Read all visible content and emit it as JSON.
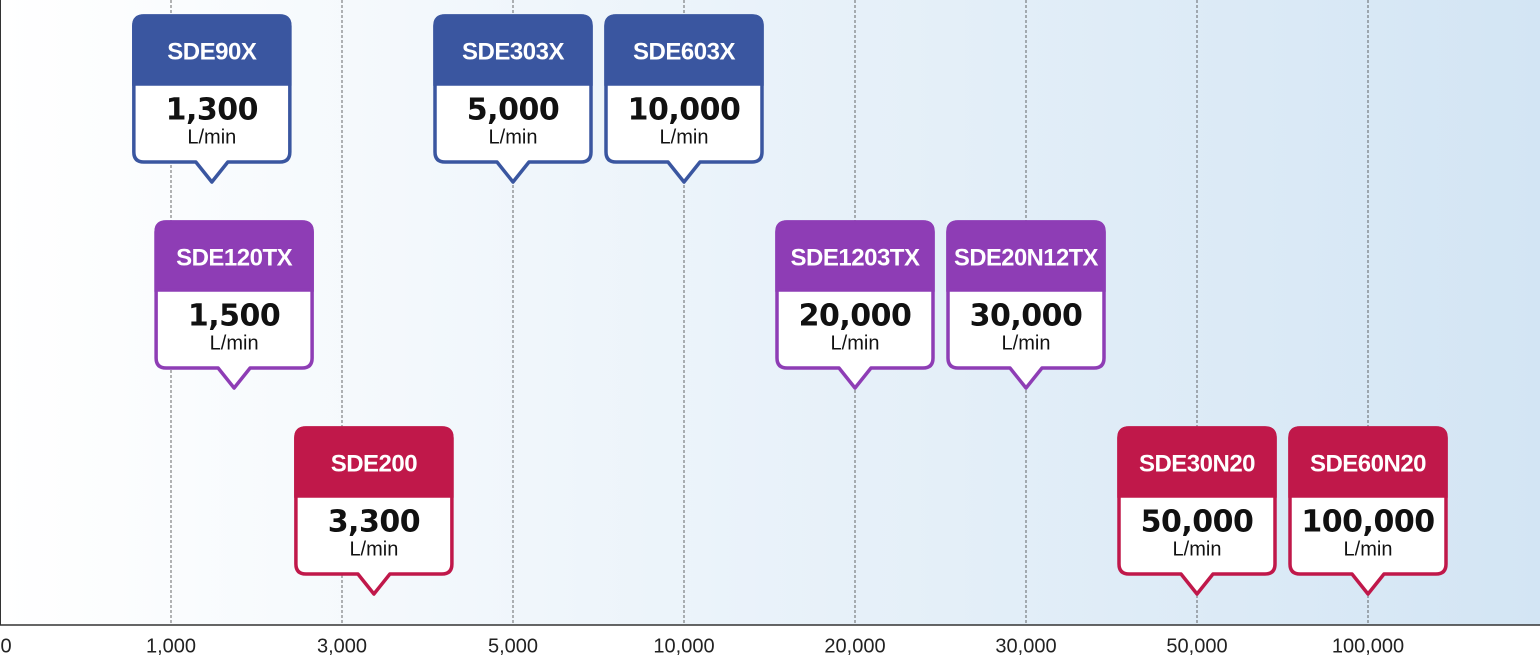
{
  "chart_data": {
    "type": "callout",
    "unit": "L/min",
    "xticks": [
      0,
      {
        "value": 1000,
        "label": "1,000"
      },
      {
        "value": 3000,
        "label": "3,000"
      },
      {
        "value": 5000,
        "label": "5,000"
      },
      {
        "value": 10000,
        "label": "10,000"
      },
      {
        "value": 20000,
        "label": "20,000"
      },
      {
        "value": 30000,
        "label": "30,000"
      },
      {
        "value": 50000,
        "label": "50,000"
      },
      {
        "value": 100000,
        "label": "100,000"
      }
    ],
    "grid": true,
    "groups": [
      {
        "color": "#3a56a0",
        "items": [
          {
            "label": "SDE90X",
            "value": 1300,
            "value_label": "1,300"
          },
          {
            "label": "SDE303X",
            "value": 5000,
            "value_label": "5,000"
          },
          {
            "label": "SDE603X",
            "value": 10000,
            "value_label": "10,000"
          }
        ]
      },
      {
        "color": "#8e3db5",
        "items": [
          {
            "label": "SDE120TX",
            "value": 1500,
            "value_label": "1,500"
          },
          {
            "label": "SDE1203TX",
            "value": 20000,
            "value_label": "20,000"
          },
          {
            "label": "SDE20N12TX",
            "value": 30000,
            "value_label": "30,000"
          }
        ]
      },
      {
        "color": "#c0184a",
        "items": [
          {
            "label": "SDE200",
            "value": 3300,
            "value_label": "3,300"
          },
          {
            "label": "SDE30N20",
            "value": 50000,
            "value_label": "50,000"
          },
          {
            "label": "SDE60N20",
            "value": 100000,
            "value_label": "100,000"
          }
        ]
      }
    ]
  }
}
